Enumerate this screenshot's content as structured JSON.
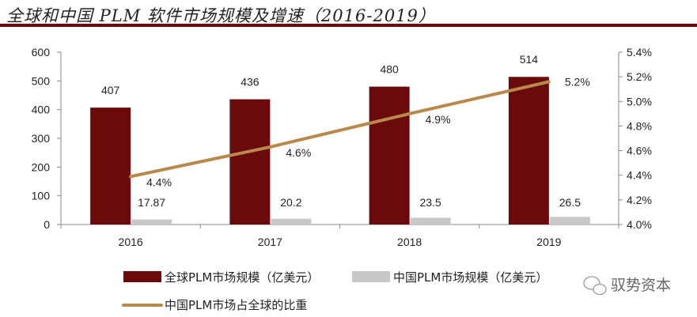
{
  "title": "全球和中国 PLM 软件市场规模及增速（2016-2019）",
  "watermark": "驭势资本",
  "chart_data": {
    "type": "bar+line",
    "categories": [
      "2016",
      "2017",
      "2018",
      "2019"
    ],
    "series": [
      {
        "name": "全球PLM市场规模（亿美元）",
        "type": "bar",
        "axis": "left",
        "color": "#6b0a0a",
        "values": [
          407,
          436,
          480,
          514
        ],
        "labels": [
          "407",
          "436",
          "480",
          "514"
        ]
      },
      {
        "name": "中国PLM市场规模（亿美元）",
        "type": "bar",
        "axis": "left",
        "color": "#c8c8c8",
        "values": [
          17.87,
          20.2,
          23.5,
          26.5
        ],
        "labels": [
          "17.87",
          "20.2",
          "23.5",
          "26.5"
        ]
      },
      {
        "name": "中国PLM市场占全球的比重",
        "type": "line",
        "axis": "right",
        "color": "#b8894a",
        "values": [
          4.39,
          4.63,
          4.9,
          5.16
        ],
        "labels": [
          "4.4%",
          "4.6%",
          "4.9%",
          "5.2%"
        ]
      }
    ],
    "left_axis": {
      "range": [
        0,
        600
      ],
      "ticks": [
        "0",
        "100",
        "200",
        "300",
        "400",
        "500",
        "600"
      ]
    },
    "right_axis": {
      "range": [
        4.0,
        5.4
      ],
      "ticks": [
        "4.0%",
        "4.2%",
        "4.4%",
        "4.6%",
        "4.8%",
        "5.0%",
        "5.2%",
        "5.4%"
      ]
    },
    "grid": false,
    "legend": "bottom"
  }
}
